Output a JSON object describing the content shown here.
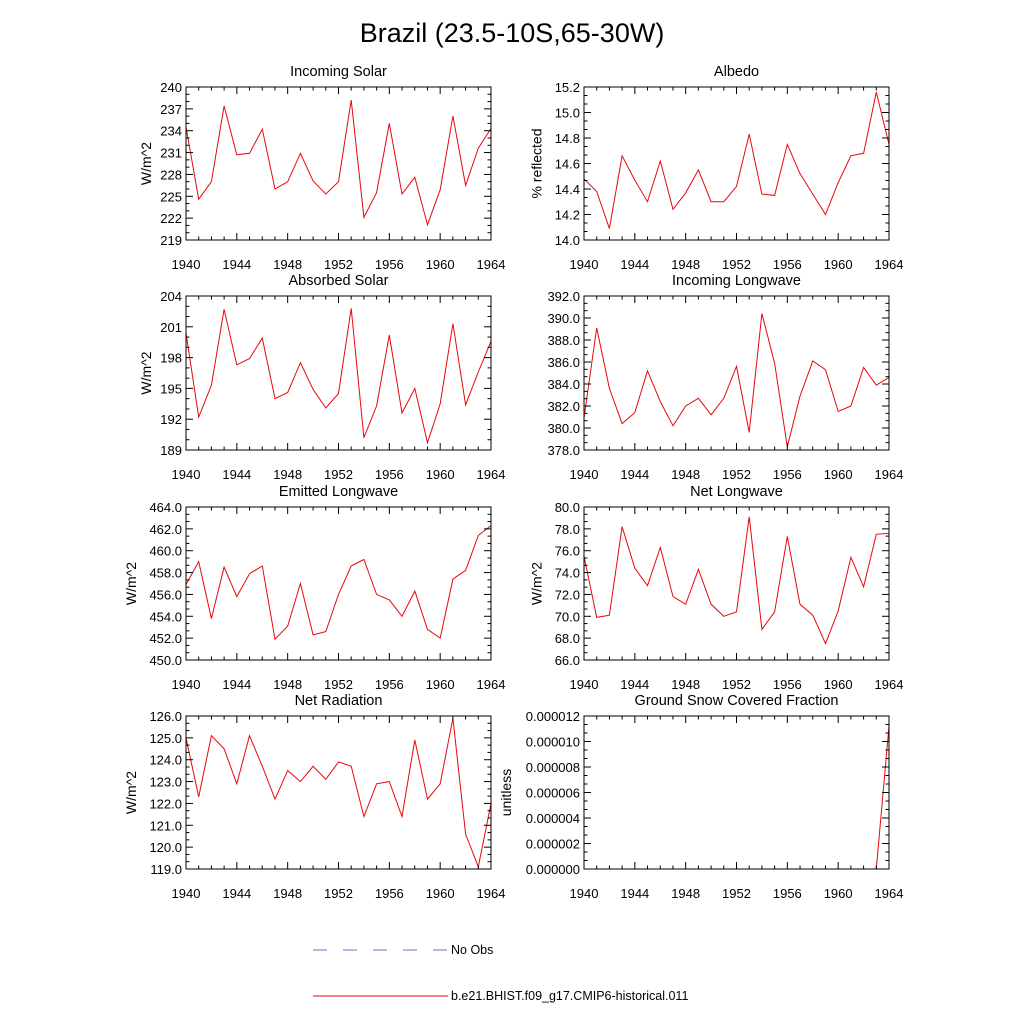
{
  "title": "Brazil (23.5-10S,65-30W)",
  "legend": {
    "obs": {
      "label": "No Obs",
      "color": "#6a73c8"
    },
    "model": {
      "label": "b.e21.BHIST.f09_g17.CMIP6-historical.011",
      "color": "#e8070b"
    }
  },
  "line_color": "#e8070b",
  "chart_data": [
    {
      "type": "line",
      "title": "Incoming Solar",
      "ylabel": "W/m^2",
      "xlim": [
        1940,
        1964
      ],
      "ylim": [
        219,
        240
      ],
      "xticks": [
        "1940",
        "1944",
        "1948",
        "1952",
        "1956",
        "1960",
        "1964"
      ],
      "yticks": [
        "219",
        "222",
        "225",
        "228",
        "231",
        "234",
        "237",
        "240"
      ],
      "x": [
        1940,
        1941,
        1942,
        1943,
        1944,
        1945,
        1946,
        1947,
        1948,
        1949,
        1950,
        1951,
        1952,
        1953,
        1954,
        1955,
        1956,
        1957,
        1958,
        1959,
        1960,
        1961,
        1962,
        1963,
        1964
      ],
      "y": [
        234.5,
        224.6,
        227.0,
        237.4,
        230.7,
        230.9,
        234.2,
        226.0,
        227.0,
        230.9,
        227.1,
        225.3,
        227.0,
        238.2,
        222.1,
        225.5,
        235.0,
        225.3,
        227.6,
        221.1,
        225.9,
        236.0,
        226.5,
        231.6,
        234.3
      ]
    },
    {
      "type": "line",
      "title": "Albedo",
      "ylabel": "% reflected",
      "xlim": [
        1940,
        1964
      ],
      "ylim": [
        14.0,
        15.2
      ],
      "xticks": [
        "1940",
        "1944",
        "1948",
        "1952",
        "1956",
        "1960",
        "1964"
      ],
      "yticks": [
        "14.0",
        "14.2",
        "14.4",
        "14.6",
        "14.8",
        "15.0",
        "15.2"
      ],
      "x": [
        1940,
        1941,
        1942,
        1943,
        1944,
        1945,
        1946,
        1947,
        1948,
        1949,
        1950,
        1951,
        1952,
        1953,
        1954,
        1955,
        1956,
        1957,
        1958,
        1959,
        1960,
        1961,
        1962,
        1963,
        1964
      ],
      "y": [
        14.48,
        14.38,
        14.09,
        14.66,
        14.47,
        14.3,
        14.62,
        14.24,
        14.37,
        14.55,
        14.3,
        14.3,
        14.42,
        14.83,
        14.36,
        14.35,
        14.75,
        14.52,
        14.36,
        14.2,
        14.45,
        14.66,
        14.68,
        15.16,
        14.75
      ]
    },
    {
      "type": "line",
      "title": "Absorbed Solar",
      "ylabel": "W/m^2",
      "xlim": [
        1940,
        1964
      ],
      "ylim": [
        189,
        204
      ],
      "xticks": [
        "1940",
        "1944",
        "1948",
        "1952",
        "1956",
        "1960",
        "1964"
      ],
      "yticks": [
        "189",
        "192",
        "195",
        "198",
        "201",
        "204"
      ],
      "x": [
        1940,
        1941,
        1942,
        1943,
        1944,
        1945,
        1946,
        1947,
        1948,
        1949,
        1950,
        1951,
        1952,
        1953,
        1954,
        1955,
        1956,
        1957,
        1958,
        1959,
        1960,
        1961,
        1962,
        1963,
        1964
      ],
      "y": [
        200.4,
        192.2,
        195.3,
        202.7,
        197.3,
        197.9,
        199.9,
        194.0,
        194.6,
        197.5,
        194.9,
        193.1,
        194.5,
        202.8,
        190.2,
        193.3,
        200.2,
        192.6,
        195.0,
        189.7,
        193.5,
        201.3,
        193.4,
        196.6,
        199.6
      ]
    },
    {
      "type": "line",
      "title": "Incoming Longwave",
      "ylabel": "",
      "xlim": [
        1940,
        1964
      ],
      "ylim": [
        378.0,
        392.0
      ],
      "xticks": [
        "1940",
        "1944",
        "1948",
        "1952",
        "1956",
        "1960",
        "1964"
      ],
      "yticks": [
        "378.0",
        "380.0",
        "382.0",
        "384.0",
        "386.0",
        "388.0",
        "390.0",
        "392.0"
      ],
      "x": [
        1940,
        1941,
        1942,
        1943,
        1944,
        1945,
        1946,
        1947,
        1948,
        1949,
        1950,
        1951,
        1952,
        1953,
        1954,
        1955,
        1956,
        1957,
        1958,
        1959,
        1960,
        1961,
        1962,
        1963,
        1964
      ],
      "y": [
        380.9,
        389.1,
        383.6,
        380.4,
        381.4,
        385.2,
        382.4,
        380.2,
        382.0,
        382.7,
        381.2,
        382.7,
        385.6,
        379.6,
        390.4,
        385.9,
        378.3,
        382.9,
        386.1,
        385.3,
        381.5,
        382.0,
        385.5,
        383.9,
        384.6
      ]
    },
    {
      "type": "line",
      "title": "Emitted Longwave",
      "ylabel": "W/m^2",
      "xlim": [
        1940,
        1964
      ],
      "ylim": [
        450.0,
        464.0
      ],
      "xticks": [
        "1940",
        "1944",
        "1948",
        "1952",
        "1956",
        "1960",
        "1964"
      ],
      "yticks": [
        "450.0",
        "452.0",
        "454.0",
        "456.0",
        "458.0",
        "460.0",
        "462.0",
        "464.0"
      ],
      "x": [
        1940,
        1941,
        1942,
        1943,
        1944,
        1945,
        1946,
        1947,
        1948,
        1949,
        1950,
        1951,
        1952,
        1953,
        1954,
        1955,
        1956,
        1957,
        1958,
        1959,
        1960,
        1961,
        1962,
        1963,
        1964
      ],
      "y": [
        456.9,
        459.0,
        453.8,
        458.5,
        455.8,
        457.9,
        458.6,
        451.9,
        453.1,
        457.0,
        452.3,
        452.6,
        456.0,
        458.6,
        459.2,
        456.0,
        455.5,
        454.0,
        456.3,
        452.8,
        452.0,
        457.4,
        458.2,
        461.4,
        462.3
      ]
    },
    {
      "type": "line",
      "title": "Net Longwave",
      "ylabel": "W/m^2",
      "xlim": [
        1940,
        1964
      ],
      "ylim": [
        66.0,
        80.0
      ],
      "xticks": [
        "1940",
        "1944",
        "1948",
        "1952",
        "1956",
        "1960",
        "1964"
      ],
      "yticks": [
        "66.0",
        "68.0",
        "70.0",
        "72.0",
        "74.0",
        "76.0",
        "78.0",
        "80.0"
      ],
      "x": [
        1940,
        1941,
        1942,
        1943,
        1944,
        1945,
        1946,
        1947,
        1948,
        1949,
        1950,
        1951,
        1952,
        1953,
        1954,
        1955,
        1956,
        1957,
        1958,
        1959,
        1960,
        1961,
        1962,
        1963,
        1964
      ],
      "y": [
        75.5,
        69.9,
        70.1,
        78.2,
        74.4,
        72.8,
        76.3,
        71.8,
        71.1,
        74.3,
        71.1,
        70.0,
        70.4,
        79.1,
        68.8,
        70.4,
        77.3,
        71.1,
        70.1,
        67.5,
        70.5,
        75.4,
        72.7,
        77.5,
        77.6
      ]
    },
    {
      "type": "line",
      "title": "Net Radiation",
      "ylabel": "W/m^2",
      "xlim": [
        1940,
        1964
      ],
      "ylim": [
        119.0,
        126.0
      ],
      "xticks": [
        "1940",
        "1944",
        "1948",
        "1952",
        "1956",
        "1960",
        "1964"
      ],
      "yticks": [
        "119.0",
        "120.0",
        "121.0",
        "122.0",
        "123.0",
        "124.0",
        "125.0",
        "126.0"
      ],
      "x": [
        1940,
        1941,
        1942,
        1943,
        1944,
        1945,
        1946,
        1947,
        1948,
        1949,
        1950,
        1951,
        1952,
        1953,
        1954,
        1955,
        1956,
        1957,
        1958,
        1959,
        1960,
        1961,
        1962,
        1963,
        1964
      ],
      "y": [
        125.0,
        122.3,
        125.1,
        124.5,
        122.9,
        125.1,
        123.7,
        122.2,
        123.5,
        123.0,
        123.7,
        123.1,
        123.9,
        123.7,
        121.4,
        122.9,
        123.0,
        121.4,
        124.9,
        122.2,
        122.9,
        125.9,
        120.6,
        119.1,
        122.0
      ]
    },
    {
      "type": "line",
      "title": "Ground Snow Covered Fraction",
      "ylabel": "unitless",
      "xlim": [
        1940,
        1964
      ],
      "ylim": [
        0,
        1.2e-05
      ],
      "xticks": [
        "1940",
        "1944",
        "1948",
        "1952",
        "1956",
        "1960",
        "1964"
      ],
      "yticks": [
        "0.000000",
        "0.000002",
        "0.000004",
        "0.000006",
        "0.000008",
        "0.000010",
        "0.000012"
      ],
      "x": [
        1940,
        1941,
        1942,
        1943,
        1944,
        1945,
        1946,
        1947,
        1948,
        1949,
        1950,
        1951,
        1952,
        1953,
        1954,
        1955,
        1956,
        1957,
        1958,
        1959,
        1960,
        1961,
        1962,
        1963,
        1964
      ],
      "y": [
        0,
        0,
        0,
        0,
        0,
        0,
        0,
        0,
        0,
        0,
        0,
        0,
        0,
        0,
        0,
        0,
        0,
        0,
        0,
        0,
        0,
        0,
        0,
        0,
        1.12e-05
      ]
    }
  ]
}
